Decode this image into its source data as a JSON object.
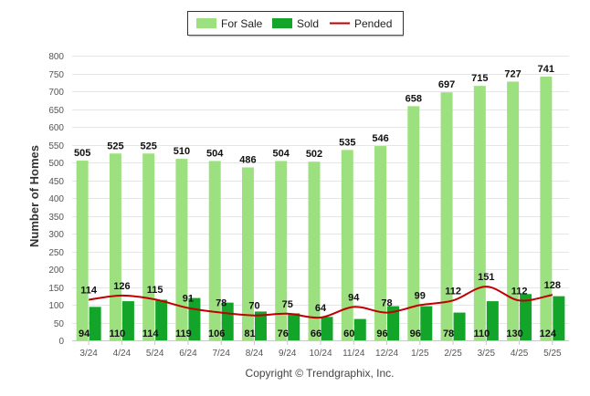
{
  "chart_data": {
    "type": "bar",
    "ylabel": "Number of Homes",
    "ylim": [
      0,
      800
    ],
    "yticks": [
      "0",
      "50",
      "100",
      "150",
      "200",
      "250",
      "300",
      "350",
      "400",
      "450",
      "500",
      "550",
      "600",
      "650",
      "700",
      "750",
      "800"
    ],
    "categories": [
      "3/24",
      "4/24",
      "5/24",
      "6/24",
      "7/24",
      "8/24",
      "9/24",
      "10/24",
      "11/24",
      "12/24",
      "1/25",
      "2/25",
      "3/25",
      "4/25",
      "5/25"
    ],
    "series": [
      {
        "name": "For Sale",
        "type": "bar",
        "color": "#9de07f",
        "values": [
          505,
          525,
          525,
          510,
          504,
          486,
          504,
          502,
          535,
          546,
          658,
          697,
          715,
          727,
          741
        ]
      },
      {
        "name": "Sold",
        "type": "bar",
        "color": "#12a52a",
        "values": [
          94,
          110,
          114,
          119,
          106,
          81,
          76,
          66,
          60,
          96,
          96,
          78,
          110,
          130,
          124
        ]
      },
      {
        "name": "Pended",
        "type": "line",
        "color": "#c00000",
        "values": [
          114,
          126,
          115,
          91,
          78,
          70,
          75,
          64,
          94,
          78,
          99,
          112,
          151,
          112,
          128
        ]
      }
    ],
    "grid": true,
    "legend_position": "top-center"
  },
  "footer": {
    "credit": "Copyright © Trendgraphix, Inc."
  }
}
